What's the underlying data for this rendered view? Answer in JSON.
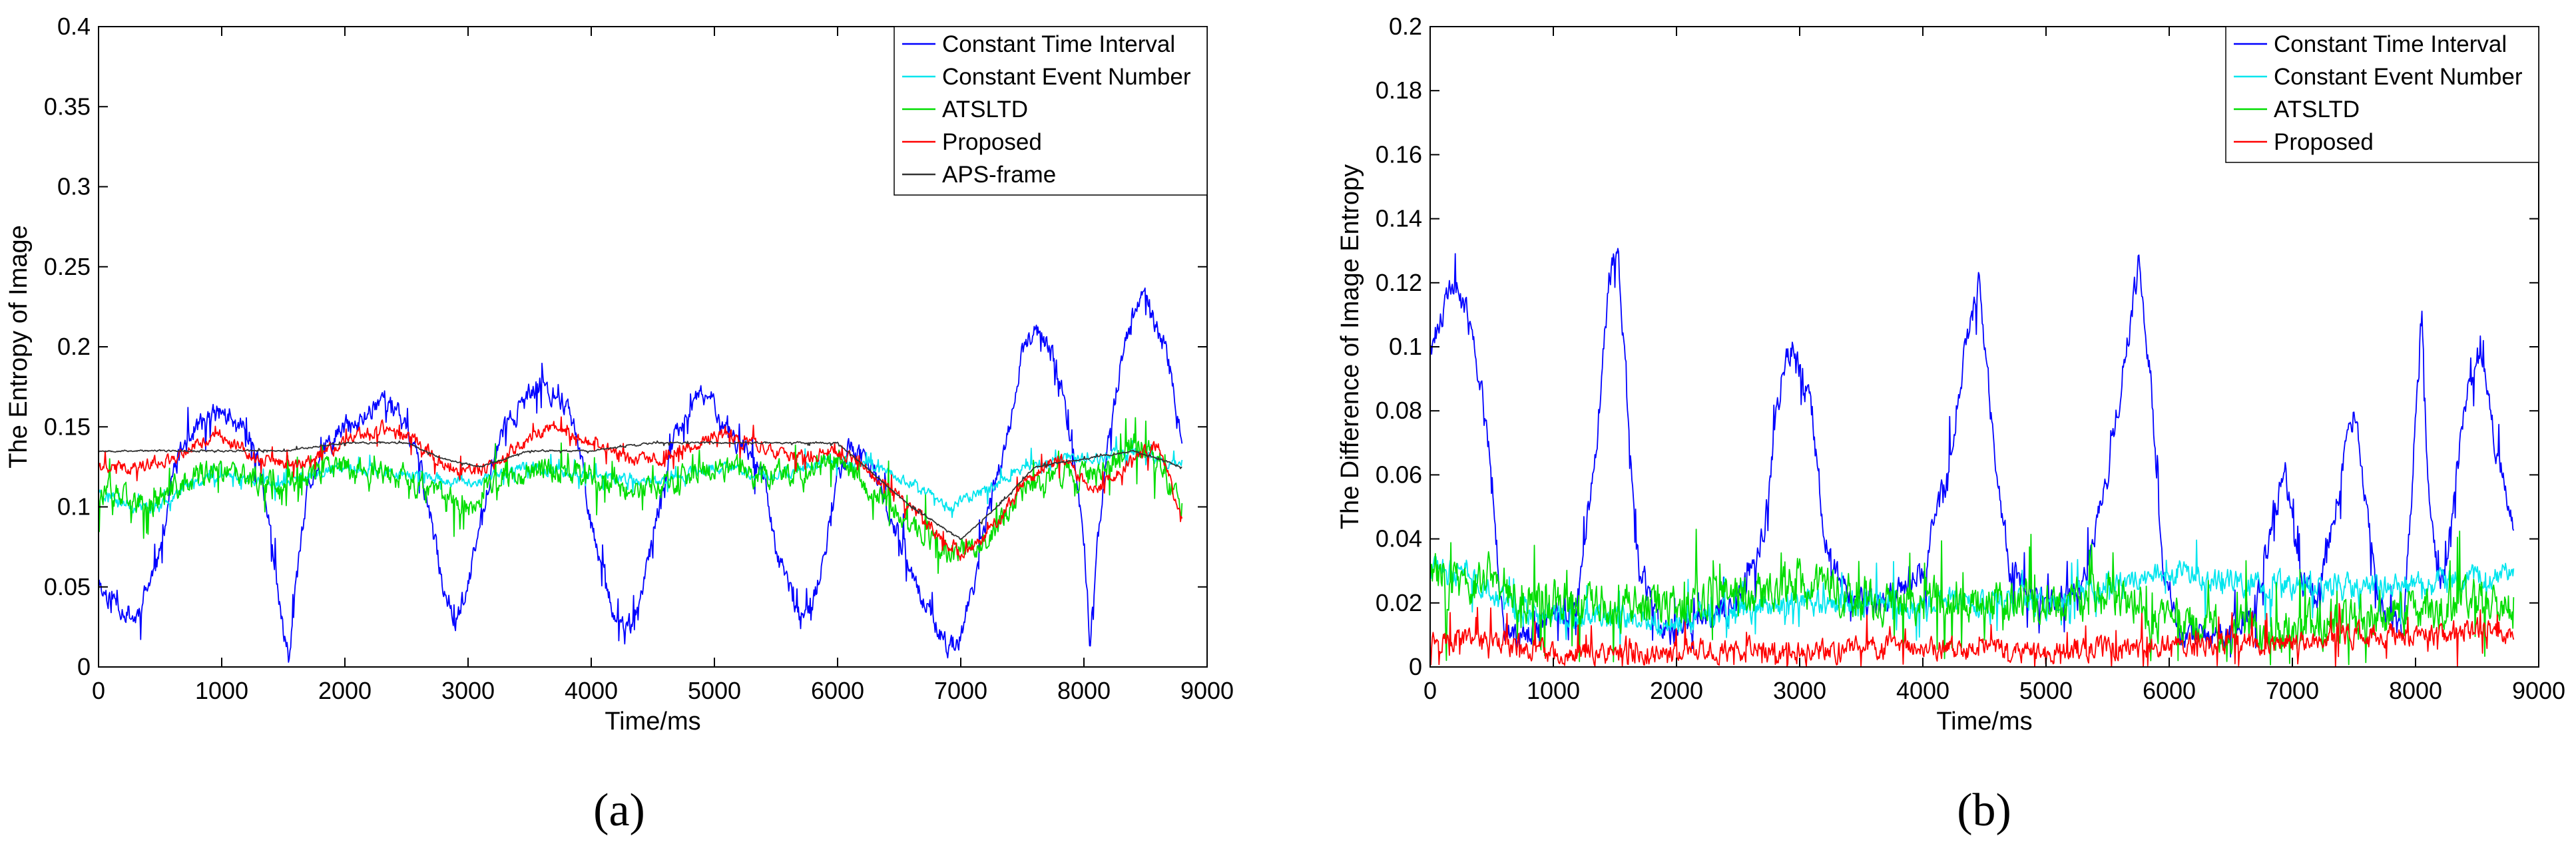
{
  "chart_data": [
    {
      "panel_label": "(a)",
      "type": "line",
      "title": "",
      "xlabel": "Time/ms",
      "ylabel": "The Entropy of Image",
      "xlim": [
        0,
        9000
      ],
      "ylim": [
        0,
        0.4
      ],
      "xticks": [
        0,
        1000,
        2000,
        3000,
        4000,
        5000,
        6000,
        7000,
        8000,
        9000
      ],
      "yticks": [
        0,
        0.05,
        0.1,
        0.15,
        0.2,
        0.25,
        0.3,
        0.35,
        0.4
      ],
      "xtick_labels": [
        "0",
        "1000",
        "2000",
        "3000",
        "4000",
        "5000",
        "6000",
        "7000",
        "8000",
        "9000"
      ],
      "ytick_labels": [
        "0",
        "0.05",
        "0.1",
        "0.15",
        "0.2",
        "0.25",
        "0.3",
        "0.35",
        "0.4"
      ],
      "grid": false,
      "legend_position": "top-right",
      "series": [
        {
          "name": "Constant Time Interval",
          "color": "#0000ff",
          "noise": 0.012,
          "seed": 11,
          "x": [
            0,
            150,
            300,
            500,
            600,
            700,
            800,
            900,
            1000,
            1100,
            1200,
            1300,
            1400,
            1500,
            1550,
            1600,
            1700,
            1800,
            1900,
            2000,
            2100,
            2200,
            2300,
            2400,
            2500,
            2600,
            2700,
            2800,
            2900,
            3000,
            3100,
            3200,
            3300,
            3400,
            3500,
            3600,
            3700,
            3800,
            3900,
            4000,
            4100,
            4200,
            4300,
            4400,
            4500,
            4600,
            4700,
            4800,
            4900,
            5000,
            5100,
            5200,
            5300,
            5400,
            5500,
            5600,
            5700,
            5800,
            5900,
            6000,
            6100,
            6200,
            6300,
            6400,
            6500,
            6600,
            6700,
            6800,
            6900,
            7000,
            7100,
            7200,
            7300,
            7400,
            7500,
            7600,
            7700,
            7800,
            7900,
            8000,
            8050,
            8100,
            8200,
            8300,
            8400,
            8500,
            8600,
            8700,
            8750,
            8800
          ],
          "y": [
            0.05,
            0.04,
            0.03,
            0.07,
            0.12,
            0.14,
            0.15,
            0.155,
            0.16,
            0.15,
            0.15,
            0.13,
            0.08,
            0.02,
            0.005,
            0.05,
            0.11,
            0.13,
            0.14,
            0.15,
            0.15,
            0.16,
            0.17,
            0.16,
            0.15,
            0.13,
            0.09,
            0.05,
            0.03,
            0.05,
            0.09,
            0.13,
            0.15,
            0.16,
            0.17,
            0.175,
            0.17,
            0.165,
            0.14,
            0.09,
            0.06,
            0.03,
            0.02,
            0.04,
            0.08,
            0.12,
            0.15,
            0.16,
            0.17,
            0.165,
            0.15,
            0.14,
            0.13,
            0.12,
            0.07,
            0.05,
            0.03,
            0.04,
            0.07,
            0.12,
            0.14,
            0.13,
            0.12,
            0.1,
            0.08,
            0.06,
            0.04,
            0.025,
            0.01,
            0.02,
            0.05,
            0.09,
            0.12,
            0.15,
            0.2,
            0.21,
            0.2,
            0.18,
            0.14,
            0.08,
            0.015,
            0.07,
            0.14,
            0.19,
            0.22,
            0.23,
            0.21,
            0.19,
            0.16,
            0.14
          ]
        },
        {
          "name": "Constant Event Number",
          "color": "#00e5ee",
          "noise": 0.006,
          "seed": 23,
          "x": [
            0,
            300,
            500,
            700,
            1000,
            1500,
            2000,
            2500,
            3000,
            3500,
            4000,
            4500,
            5000,
            5500,
            6000,
            6300,
            6600,
            6900,
            7200,
            7500,
            7800,
            8100,
            8400,
            8800
          ],
          "y": [
            0.11,
            0.1,
            0.1,
            0.115,
            0.12,
            0.115,
            0.125,
            0.12,
            0.115,
            0.125,
            0.12,
            0.115,
            0.125,
            0.12,
            0.13,
            0.125,
            0.115,
            0.1,
            0.11,
            0.125,
            0.13,
            0.13,
            0.135,
            0.125
          ]
        },
        {
          "name": "ATSLTD",
          "color": "#00dd00",
          "noise": 0.014,
          "seed": 37,
          "x": [
            0,
            200,
            400,
            600,
            800,
            1000,
            1500,
            2000,
            2400,
            2700,
            3000,
            3300,
            3600,
            4000,
            4400,
            4700,
            5000,
            5400,
            5800,
            6000,
            6300,
            6600,
            6900,
            7200,
            7500,
            7800,
            8100,
            8400,
            8600,
            8800
          ],
          "y": [
            0.11,
            0.105,
            0.1,
            0.11,
            0.12,
            0.12,
            0.115,
            0.125,
            0.12,
            0.11,
            0.1,
            0.12,
            0.125,
            0.12,
            0.11,
            0.115,
            0.125,
            0.12,
            0.125,
            0.13,
            0.11,
            0.09,
            0.07,
            0.08,
            0.11,
            0.12,
            0.12,
            0.14,
            0.13,
            0.1
          ]
        },
        {
          "name": "Proposed",
          "color": "#ff0000",
          "noise": 0.007,
          "seed": 41,
          "x": [
            0,
            300,
            600,
            800,
            1000,
            1300,
            1600,
            2000,
            2300,
            2600,
            2900,
            3200,
            3500,
            3700,
            4000,
            4300,
            4600,
            5000,
            5300,
            5600,
            6000,
            6300,
            6600,
            6900,
            7000,
            7200,
            7500,
            7800,
            8100,
            8400,
            8600,
            8800
          ],
          "y": [
            0.125,
            0.125,
            0.13,
            0.14,
            0.145,
            0.13,
            0.125,
            0.14,
            0.15,
            0.14,
            0.12,
            0.125,
            0.145,
            0.15,
            0.14,
            0.13,
            0.13,
            0.145,
            0.14,
            0.13,
            0.135,
            0.12,
            0.1,
            0.075,
            0.07,
            0.08,
            0.115,
            0.13,
            0.11,
            0.13,
            0.14,
            0.09
          ]
        },
        {
          "name": "APS-frame",
          "color": "#333333",
          "noise": 0.001,
          "seed": 53,
          "x": [
            0,
            500,
            1000,
            1500,
            2000,
            2500,
            2800,
            3100,
            3500,
            4000,
            4500,
            5000,
            5500,
            6000,
            6300,
            6600,
            6900,
            7000,
            7300,
            7600,
            8000,
            8400,
            8800
          ],
          "y": [
            0.135,
            0.135,
            0.135,
            0.135,
            0.14,
            0.14,
            0.13,
            0.125,
            0.135,
            0.135,
            0.14,
            0.14,
            0.14,
            0.14,
            0.12,
            0.1,
            0.085,
            0.08,
            0.1,
            0.125,
            0.13,
            0.135,
            0.125
          ]
        }
      ]
    },
    {
      "panel_label": "(b)",
      "type": "line",
      "title": "",
      "xlabel": "Time/ms",
      "ylabel": "The Difference of Image Entropy",
      "xlim": [
        0,
        9000
      ],
      "ylim": [
        0,
        0.2
      ],
      "xticks": [
        0,
        1000,
        2000,
        3000,
        4000,
        5000,
        6000,
        7000,
        8000,
        9000
      ],
      "yticks": [
        0,
        0.02,
        0.04,
        0.06,
        0.08,
        0.1,
        0.12,
        0.14,
        0.16,
        0.18,
        0.2
      ],
      "xtick_labels": [
        "0",
        "1000",
        "2000",
        "3000",
        "4000",
        "5000",
        "6000",
        "7000",
        "8000",
        "9000"
      ],
      "ytick_labels": [
        "0",
        "0.02",
        "0.04",
        "0.06",
        "0.08",
        "0.1",
        "0.12",
        "0.14",
        "0.16",
        "0.18",
        "0.2"
      ],
      "grid": false,
      "legend_position": "top-right",
      "series": [
        {
          "name": "Constant Time Interval",
          "color": "#0000ff",
          "noise": 0.008,
          "seed": 61,
          "x": [
            0,
            100,
            200,
            300,
            400,
            500,
            550,
            600,
            800,
            1000,
            1200,
            1350,
            1450,
            1530,
            1600,
            1700,
            1900,
            2200,
            2500,
            2700,
            2850,
            2950,
            3100,
            3200,
            3400,
            3700,
            4000,
            4200,
            4350,
            4450,
            4550,
            4700,
            5000,
            5300,
            5500,
            5650,
            5750,
            5850,
            5950,
            6100,
            6400,
            6700,
            6850,
            6950,
            7050,
            7200,
            7400,
            7500,
            7600,
            7700,
            7900,
            8050,
            8100,
            8200,
            8300,
            8400,
            8500,
            8600,
            8700,
            8800
          ],
          "y": [
            0.1,
            0.11,
            0.12,
            0.11,
            0.09,
            0.06,
            0.03,
            0.01,
            0.01,
            0.015,
            0.02,
            0.07,
            0.12,
            0.13,
            0.08,
            0.03,
            0.01,
            0.015,
            0.02,
            0.04,
            0.09,
            0.1,
            0.08,
            0.04,
            0.02,
            0.02,
            0.03,
            0.06,
            0.1,
            0.12,
            0.08,
            0.03,
            0.02,
            0.025,
            0.06,
            0.1,
            0.125,
            0.09,
            0.03,
            0.01,
            0.01,
            0.015,
            0.05,
            0.06,
            0.03,
            0.02,
            0.06,
            0.08,
            0.05,
            0.02,
            0.01,
            0.11,
            0.06,
            0.02,
            0.05,
            0.08,
            0.1,
            0.08,
            0.06,
            0.045
          ]
        },
        {
          "name": "Constant Event Number",
          "color": "#00e5ee",
          "noise": 0.007,
          "seed": 73,
          "x": [
            0,
            300,
            600,
            1000,
            2000,
            3000,
            4000,
            5000,
            6000,
            7000,
            8000,
            8800
          ],
          "y": [
            0.03,
            0.03,
            0.02,
            0.015,
            0.015,
            0.02,
            0.02,
            0.02,
            0.03,
            0.025,
            0.025,
            0.03
          ]
        },
        {
          "name": "ATSLTD",
          "color": "#00dd00",
          "noise": 0.012,
          "seed": 83,
          "x": [
            0,
            300,
            500,
            700,
            1000,
            1500,
            2000,
            2500,
            3000,
            3500,
            4000,
            4500,
            5000,
            5500,
            6000,
            6500,
            7000,
            7500,
            8000,
            8500,
            8800
          ],
          "y": [
            0.03,
            0.025,
            0.03,
            0.022,
            0.02,
            0.018,
            0.02,
            0.022,
            0.025,
            0.022,
            0.02,
            0.022,
            0.02,
            0.022,
            0.015,
            0.012,
            0.012,
            0.015,
            0.018,
            0.02,
            0.018
          ]
        },
        {
          "name": "Proposed",
          "color": "#ff0000",
          "noise": 0.006,
          "seed": 97,
          "x": [
            0,
            500,
            1000,
            1500,
            2000,
            2500,
            3000,
            3500,
            4000,
            4500,
            5000,
            5500,
            6000,
            6500,
            7000,
            7500,
            8000,
            8500,
            8800
          ],
          "y": [
            0.009,
            0.008,
            0.004,
            0.004,
            0.005,
            0.005,
            0.004,
            0.006,
            0.006,
            0.005,
            0.005,
            0.006,
            0.006,
            0.008,
            0.008,
            0.01,
            0.01,
            0.011,
            0.01
          ]
        }
      ]
    }
  ]
}
